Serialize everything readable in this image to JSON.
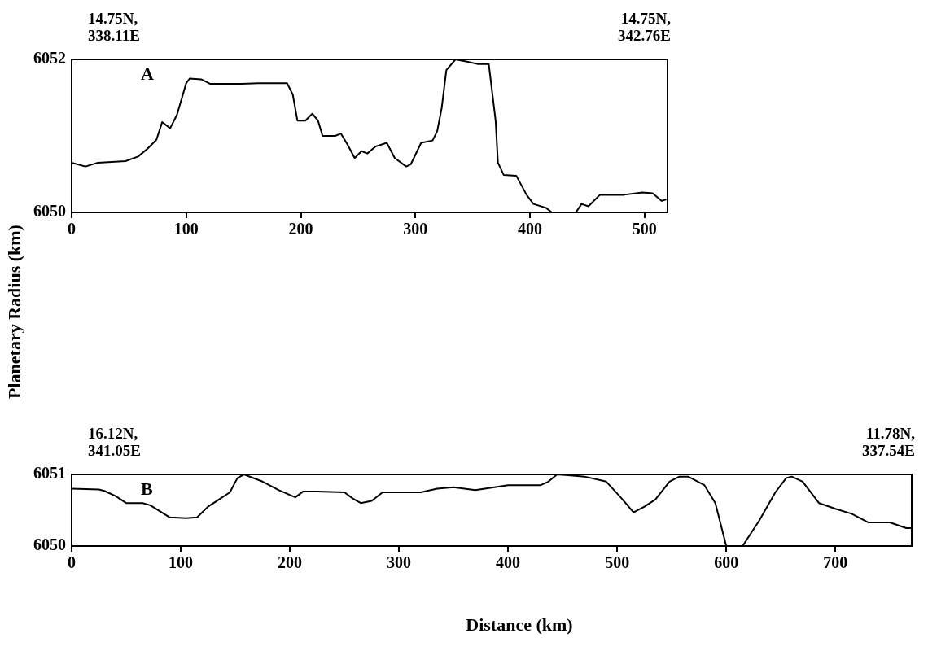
{
  "chart_data": [
    {
      "type": "line",
      "ylabel": "Planetary Radius (km)",
      "annotations": [
        "A",
        "14.75N, 338.11E",
        "14.75N, 342.76E"
      ],
      "xlim": [
        0,
        520
      ],
      "xticks": [
        0,
        100,
        200,
        300,
        400,
        500
      ],
      "ylim": [
        6050,
        6052
      ],
      "yticks": [
        6050,
        6052
      ],
      "grid": false,
      "legend": false,
      "marker": "none",
      "line_style": "solid",
      "series": [
        {
          "color": "#000000",
          "x": [
            0,
            12,
            23,
            47,
            58,
            66,
            74,
            79,
            86,
            92,
            100,
            103,
            113,
            121,
            132,
            148,
            163,
            188,
            193,
            197,
            204,
            210,
            215,
            219,
            230,
            235,
            241,
            247,
            253,
            258,
            265,
            275,
            282,
            292,
            296,
            305,
            315,
            319,
            323,
            327,
            335,
            345,
            354,
            364,
            370,
            372,
            377,
            388,
            397,
            403,
            414,
            419,
            440,
            445,
            451,
            461,
            482,
            498,
            507,
            515,
            519
          ],
          "values": [
            6050.65,
            6050.6,
            6050.65,
            6050.67,
            6050.73,
            6050.83,
            6050.95,
            6051.18,
            6051.1,
            6051.28,
            6051.69,
            6051.75,
            6051.74,
            6051.68,
            6051.68,
            6051.68,
            6051.69,
            6051.69,
            6051.54,
            6051.2,
            6051.2,
            6051.29,
            6051.2,
            6051.0,
            6051.0,
            6051.03,
            6050.88,
            6050.71,
            6050.8,
            6050.77,
            6050.86,
            6050.91,
            6050.71,
            6050.6,
            6050.63,
            6050.91,
            6050.94,
            6051.06,
            6051.37,
            6051.86,
            6052,
            6051.97,
            6051.94,
            6051.94,
            6051.2,
            6050.65,
            6050.49,
            6050.48,
            6050.23,
            6050.11,
            6050.06,
            6050,
            6050,
            6050.11,
            6050.08,
            6050.23,
            6050.23,
            6050.26,
            6050.25,
            6050.15,
            6050.17
          ]
        }
      ]
    },
    {
      "type": "line",
      "xlabel": "Distance (km)",
      "annotations": [
        "B",
        "16.12N, 341.05E",
        "11.78N, 337.54E"
      ],
      "xlim": [
        0,
        770
      ],
      "xticks": [
        0,
        100,
        200,
        300,
        400,
        500,
        600,
        700
      ],
      "ylim": [
        6050,
        6051
      ],
      "yticks": [
        6050,
        6051
      ],
      "grid": false,
      "legend": false,
      "marker": "none",
      "line_style": "solid",
      "series": [
        {
          "color": "#000000",
          "x": [
            0,
            25,
            30,
            40,
            50,
            65,
            72,
            90,
            105,
            115,
            125,
            135,
            145,
            152,
            158,
            175,
            190,
            205,
            212,
            225,
            250,
            258,
            265,
            275,
            285,
            300,
            320,
            335,
            350,
            370,
            400,
            430,
            437,
            445,
            455,
            470,
            490,
            505,
            515,
            525,
            535,
            548,
            557,
            565,
            580,
            590,
            600,
            615,
            630,
            645,
            655,
            660,
            670,
            685,
            700,
            715,
            730,
            750,
            765,
            770
          ],
          "values": [
            6050.8,
            6050.79,
            6050.77,
            6050.7,
            6050.6,
            6050.6,
            6050.57,
            6050.4,
            6050.39,
            6050.4,
            6050.55,
            6050.65,
            6050.75,
            6050.95,
            6051,
            6050.9,
            6050.78,
            6050.68,
            6050.76,
            6050.76,
            6050.75,
            6050.66,
            6050.6,
            6050.63,
            6050.75,
            6050.75,
            6050.75,
            6050.8,
            6050.82,
            6050.78,
            6050.85,
            6050.85,
            6050.9,
            6051,
            6050.99,
            6050.97,
            6050.9,
            6050.65,
            6050.47,
            6050.55,
            6050.65,
            6050.9,
            6050.97,
            6050.97,
            6050.85,
            6050.6,
            6050,
            6050,
            6050.35,
            6050.75,
            6050.95,
            6050.97,
            6050.9,
            6050.6,
            6050.52,
            6050.45,
            6050.33,
            6050.33,
            6050.25,
            6050.25
          ]
        }
      ]
    }
  ]
}
